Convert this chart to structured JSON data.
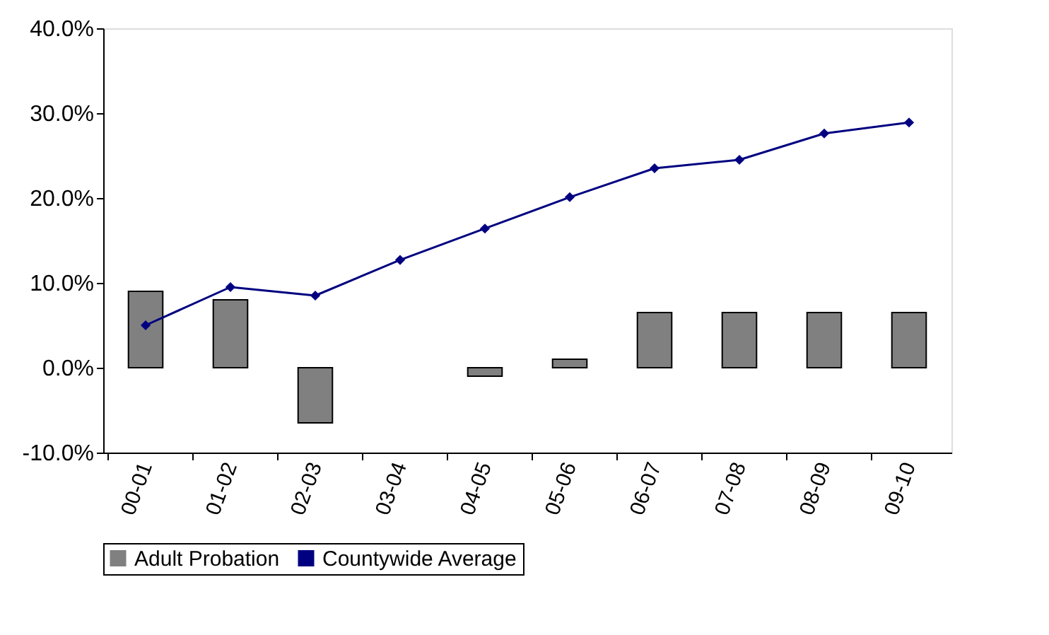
{
  "chart_data": {
    "type": "bar",
    "categories": [
      "00-01",
      "01-02",
      "02-03",
      "03-04",
      "04-05",
      "05-06",
      "06-07",
      "07-08",
      "08-09",
      "09-10"
    ],
    "series": [
      {
        "name": "Adult Probation",
        "color": "#808080",
        "values": [
          9.0,
          8.0,
          -6.5,
          0,
          -1.0,
          1.0,
          6.5,
          6.5,
          6.5,
          6.5
        ]
      },
      {
        "name": "Countywide Average",
        "type": "line",
        "color": "#000080",
        "marker": "diamond",
        "values": [
          5.0,
          9.5,
          8.5,
          12.7,
          16.4,
          20.1,
          23.5,
          24.5,
          27.6,
          28.9
        ]
      }
    ],
    "ylim": [
      -10,
      40
    ],
    "yticks": [
      {
        "value": -10,
        "label": "-10.0%"
      },
      {
        "value": 0,
        "label": "0.0%"
      },
      {
        "value": 10,
        "label": "10.0%"
      },
      {
        "value": 20,
        "label": "20.0%"
      },
      {
        "value": 30,
        "label": "30.0%"
      },
      {
        "value": 40,
        "label": "40.0%"
      }
    ],
    "legend": "bottom"
  }
}
